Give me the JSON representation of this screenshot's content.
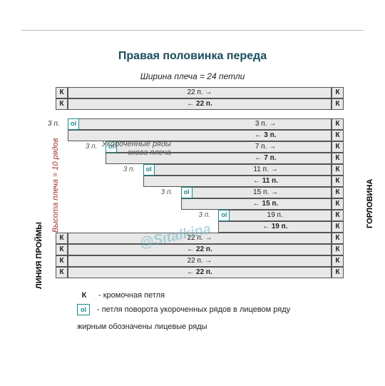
{
  "title": "Правая половинка переда",
  "subtitle": "Ширина плеча = 24 петли",
  "labels": {
    "height": "Высота плеча = 10 рядов",
    "leftSide": "ЛИНИЯ ПРОЙМЫ",
    "rightSide": "ГОРЛОВИНА"
  },
  "note": {
    "line1": "Укороченные ряды",
    "line2": "скоса плеча"
  },
  "watermark": "@Sitalkina",
  "step": "3 п.",
  "k": "К",
  "ol": "ol",
  "geom": {
    "kLeftX": 0,
    "kRightX": 387,
    "kW": 17,
    "innerL": 17,
    "innerW": 370,
    "stairW": 52.857,
    "rightHalfW": 185
  },
  "rows": [
    {
      "type": "full",
      "txt": "22 п.  →",
      "bold": false
    },
    {
      "type": "full",
      "txt": "←  22 п.",
      "bold": true
    },
    {
      "type": "stair-top",
      "stair": 7,
      "txt": "3 п. →",
      "bold": false
    },
    {
      "type": "stair",
      "stair": 7,
      "txt": "←  3 п.",
      "bold": true,
      "ol": true
    },
    {
      "type": "stair",
      "stair": 6,
      "txt": "7 п.  →",
      "bold": false
    },
    {
      "type": "stair",
      "stair": 6,
      "txt": "←  7 п.",
      "bold": true,
      "ol": true
    },
    {
      "type": "stair",
      "stair": 5,
      "txt": "11 п.  →",
      "bold": false
    },
    {
      "type": "stair",
      "stair": 5,
      "txt": "←  11 п.",
      "bold": true,
      "ol": true
    },
    {
      "type": "stair",
      "stair": 4,
      "txt": "15 п.  →",
      "bold": false
    },
    {
      "type": "stair",
      "stair": 4,
      "txt": "←  15 п.",
      "bold": true,
      "ol": true
    },
    {
      "type": "stair",
      "stair": 3,
      "txt": "19  п.",
      "bold": false
    },
    {
      "type": "stair",
      "stair": 3,
      "txt": "←  19 п.",
      "bold": true,
      "ol": true
    },
    {
      "type": "full",
      "txt": "22 п.  →",
      "bold": false
    },
    {
      "type": "full",
      "txt": "←  22 п.",
      "bold": true
    },
    {
      "type": "full",
      "txt": "22 п.  →",
      "bold": false
    },
    {
      "type": "full",
      "txt": "←  22 п.",
      "bold": true
    }
  ],
  "legend": {
    "k": "- кромочная петля",
    "ol": "- петля поворота укороченных рядов в лицевом ряду",
    "bold": "жирным обозначены лицевые ряды"
  }
}
